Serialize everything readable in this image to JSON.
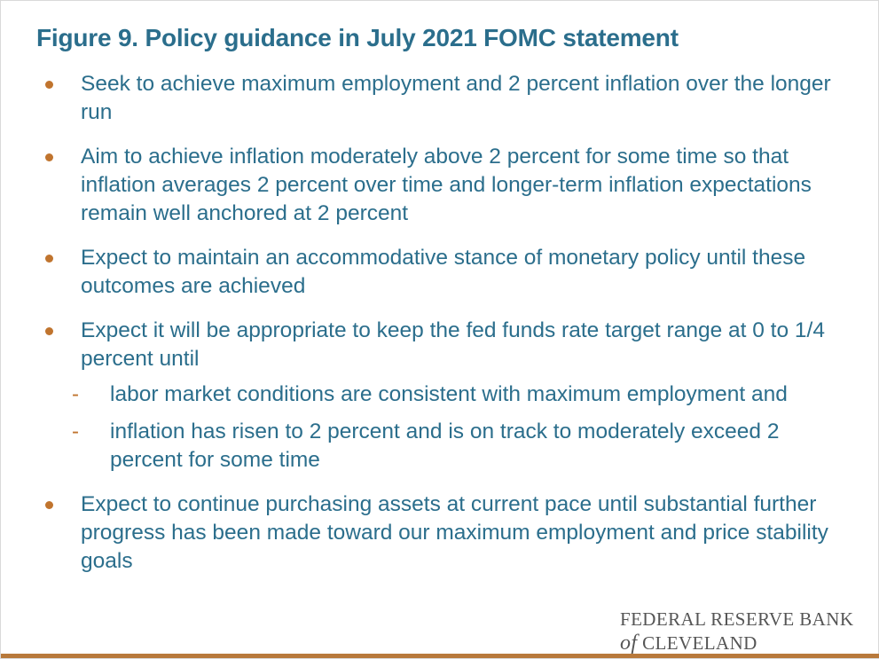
{
  "title": "Figure 9. Policy guidance in July 2021 FOMC statement",
  "bullets": [
    {
      "text": "Seek to achieve maximum employment and 2 percent inflation over the longer run"
    },
    {
      "text": "Aim to achieve inflation moderately above 2 percent for some time so that inflation averages 2 percent over time and longer-term inflation expectations remain well anchored at 2 percent"
    },
    {
      "text": "Expect to maintain an accommodative stance of monetary policy until these outcomes are achieved"
    },
    {
      "text": "Expect it will be appropriate to keep the fed funds rate target range at 0 to 1/4 percent until",
      "subs": [
        "labor market conditions are consistent with maximum employment and",
        "inflation has risen to 2 percent and is on track to moderately exceed 2 percent for some time"
      ]
    },
    {
      "text": "Expect to continue purchasing assets at current pace until substantial further progress has been made toward our maximum employment and price stability goals"
    }
  ],
  "logo": {
    "line1": "FEDERAL RESERVE BANK",
    "of": "of",
    "line2": "CLEVELAND"
  },
  "colors": {
    "text": "#2b6e8c",
    "accent": "#c0742e",
    "bar": "#b8793b"
  }
}
